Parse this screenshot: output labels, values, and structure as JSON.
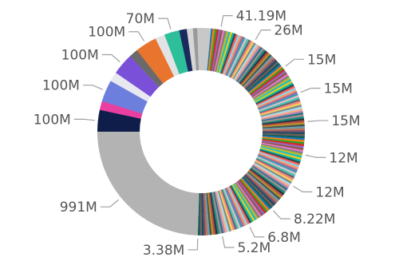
{
  "chart_data": {
    "type": "pie",
    "style": "donut",
    "background": "#ffffff",
    "label_color": "#555555",
    "leader_color": "#a0a0a0",
    "main_slice": {
      "label": "991M",
      "value": 991000000,
      "color": "#b3b3b3"
    },
    "left_slices": [
      {
        "label": "100M",
        "value": 100000000,
        "color": "#0f1d4a"
      },
      {
        "label": "",
        "value": 41000000,
        "color": "#e83fa0"
      },
      {
        "label": "100M",
        "value": 100000000,
        "color": "#6c7fdc"
      },
      {
        "label": "",
        "value": 44000000,
        "color": "#e8e8f0"
      },
      {
        "label": "100M",
        "value": 100000000,
        "color": "#7b50d8"
      },
      {
        "label": "",
        "value": 41000000,
        "color": "#6a6a6a"
      },
      {
        "label": "100M",
        "value": 100000000,
        "color": "#e8742e"
      },
      {
        "label": "",
        "value": 44000000,
        "color": "#e3e3e6"
      },
      {
        "label": "70M",
        "value": 70000000,
        "color": "#2dbf9a"
      },
      {
        "label": "",
        "value": 35000000,
        "color": "#1a2a5e"
      },
      {
        "label": "",
        "value": 28000000,
        "color": "#d6d6d6"
      },
      {
        "label": "",
        "value": 20000000,
        "color": "#9a9a9a"
      }
    ],
    "labeled_small_slices": [
      {
        "label": "41.19M",
        "value": 41190000
      },
      {
        "label": "26M",
        "value": 26000000
      },
      {
        "label": "15M",
        "value": 15000000
      },
      {
        "label": "15M",
        "value": 15000000
      },
      {
        "label": "15M",
        "value": 15000000
      },
      {
        "label": "12M",
        "value": 12000000
      },
      {
        "label": "12M",
        "value": 12000000
      },
      {
        "label": "8.22M",
        "value": 8220000
      },
      {
        "label": "6.8M",
        "value": 6800000
      },
      {
        "label": "5.2M",
        "value": 5200000
      },
      {
        "label": "3.38M",
        "value": 3380000
      }
    ],
    "unlabeled_small_slices": {
      "description_count": 160,
      "palette": [
        "#1f77b4",
        "#ff7f0e",
        "#2ca02c",
        "#d62728",
        "#9467bd",
        "#8c564b",
        "#e377c2",
        "#7f7f7f",
        "#bcbd22",
        "#17becf",
        "#f2c811",
        "#01b8aa",
        "#374649",
        "#fd625e",
        "#8ad4eb",
        "#fe9666",
        "#a66999",
        "#3599b8",
        "#dfbfbf",
        "#4ac5bb",
        "#5f6b6d",
        "#fb8281",
        "#f4d25a",
        "#7f898a",
        "#a4ddee",
        "#fdab89",
        "#b687ac",
        "#28738a",
        "#a78f8f",
        "#168980",
        "#293537",
        "#bb4a4a",
        "#b59525",
        "#475052",
        "#6a9fb0",
        "#bd7150",
        "#7b4f71",
        "#1b4d5c",
        "#706060",
        "#0f5c55"
      ]
    }
  }
}
